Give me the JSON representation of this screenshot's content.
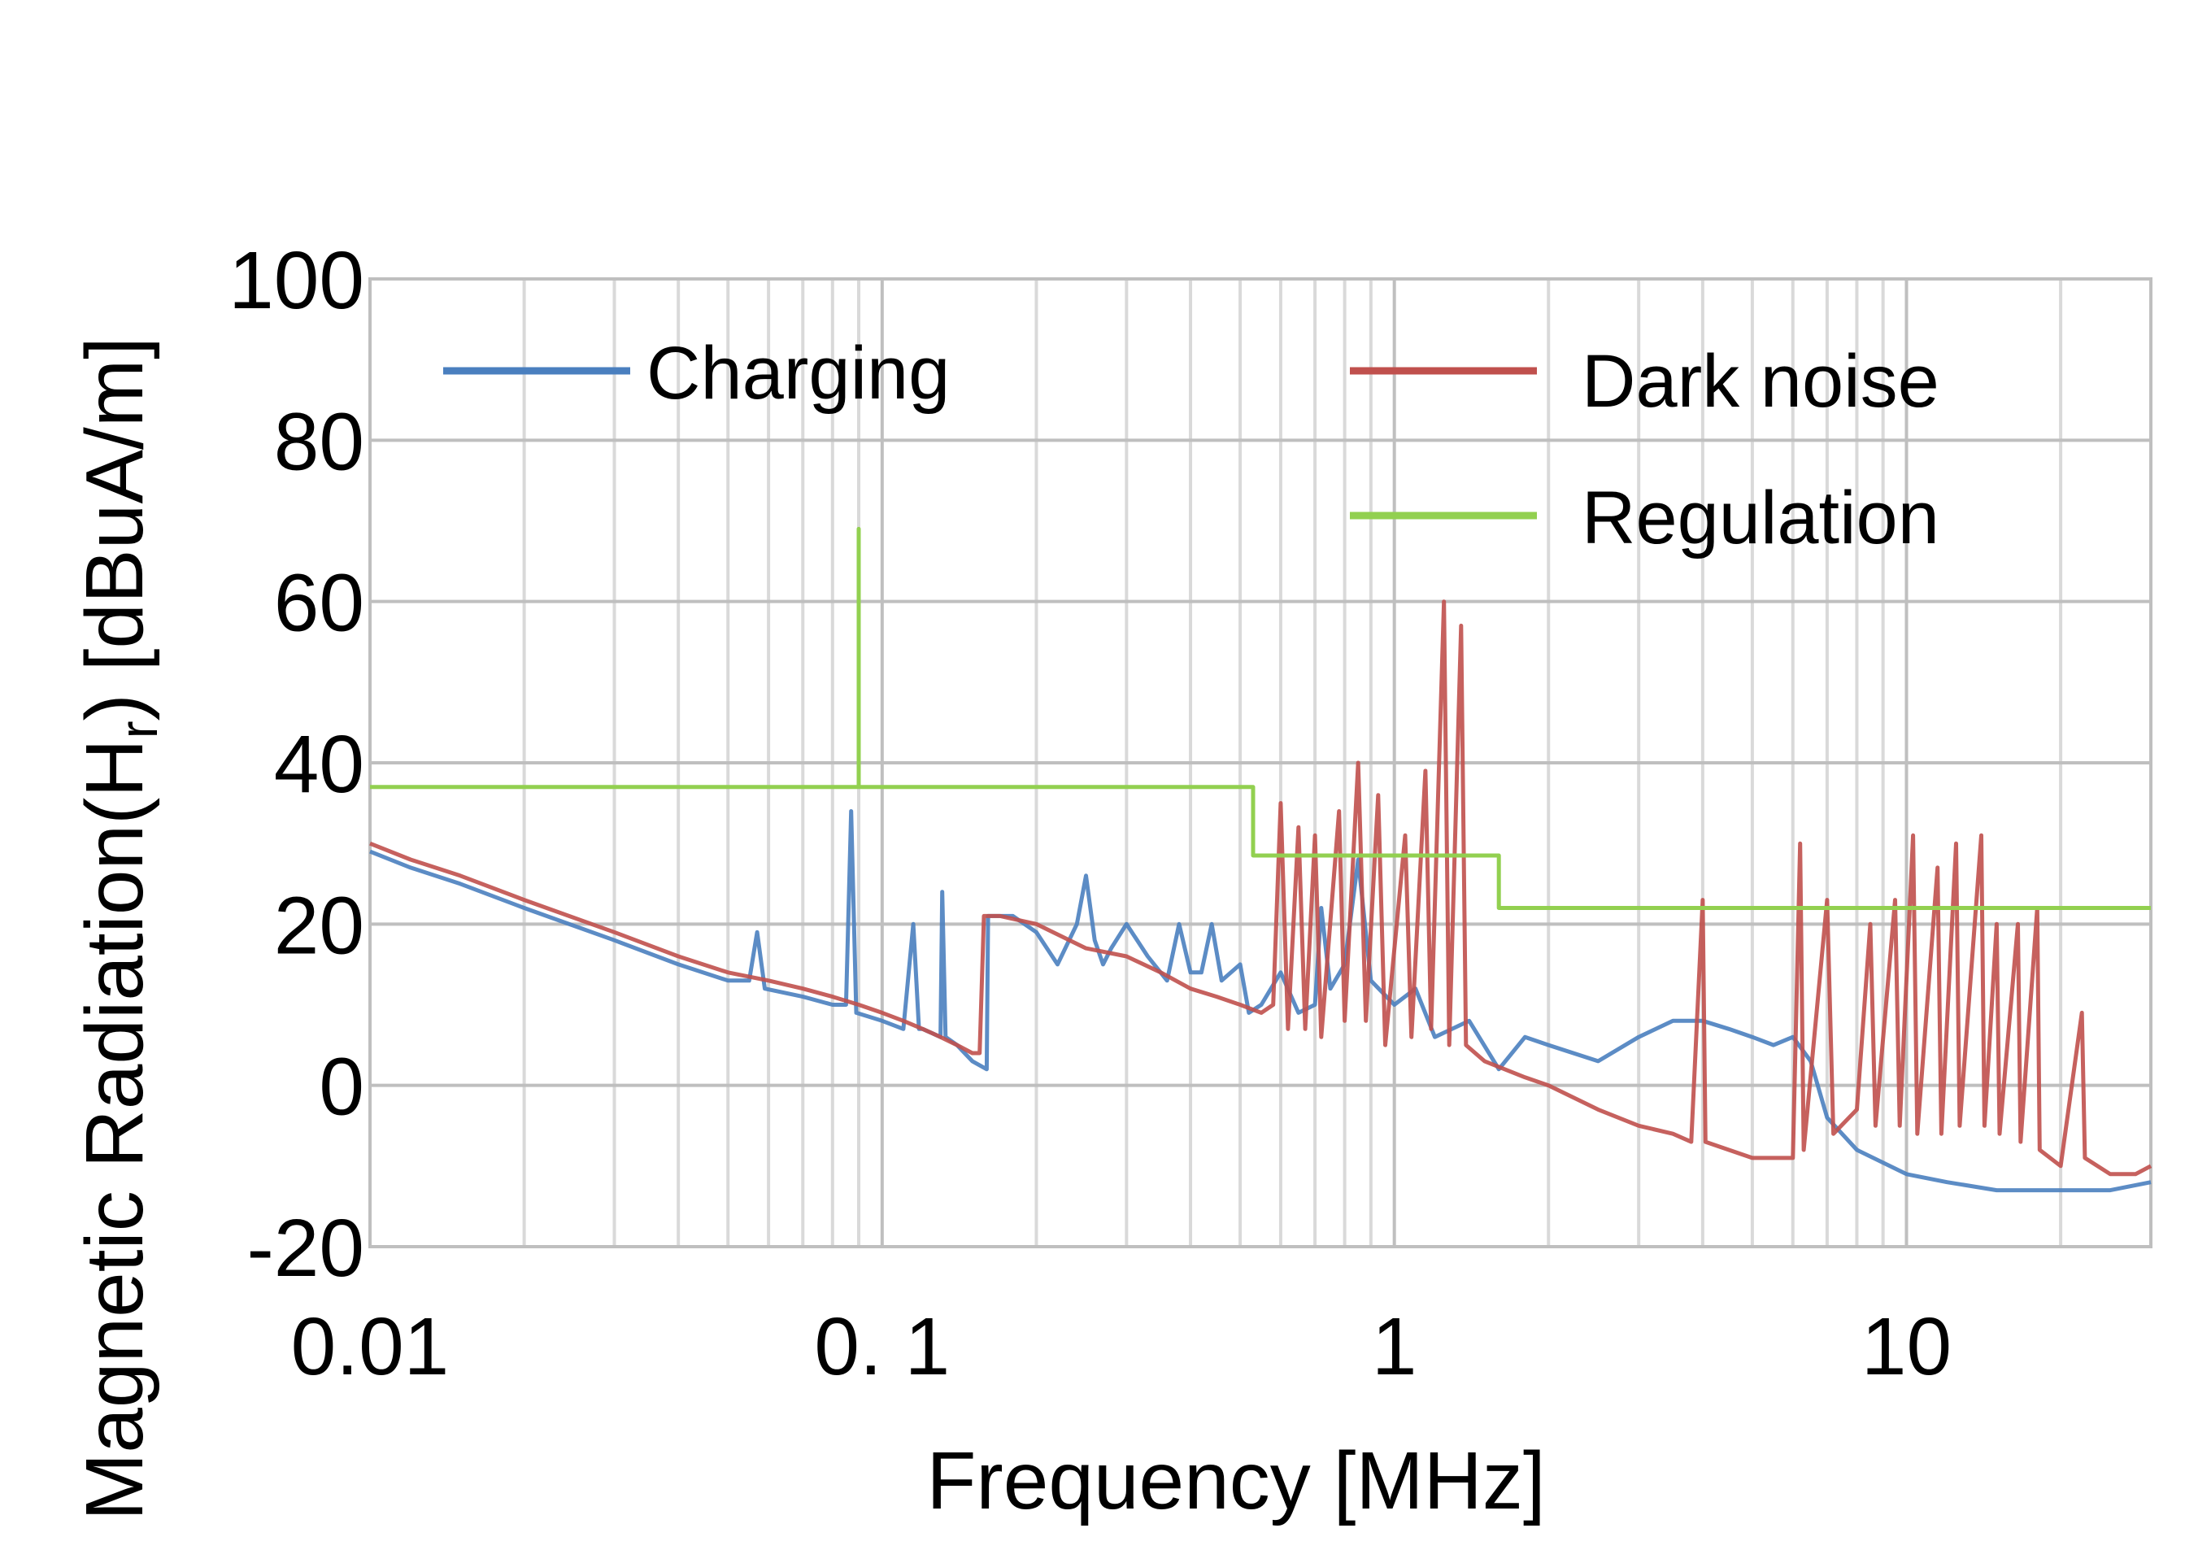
{
  "chart_data": {
    "type": "line",
    "xlabel": "Frequency [MHz]",
    "ylabel_main": "Magnetic Radiation(H",
    "ylabel_sub": "r",
    "ylabel_end": ") [dBuA/m]",
    "x_scale": "log",
    "xlim": [
      0.01,
      30
    ],
    "ylim": [
      -20,
      100
    ],
    "x_ticks": [
      {
        "value": 0.01,
        "label": "0.01"
      },
      {
        "value": 0.1,
        "label": "0. 1"
      },
      {
        "value": 1,
        "label": "1"
      },
      {
        "value": 10,
        "label": "10"
      }
    ],
    "y_ticks": [
      {
        "value": 100,
        "label": "100"
      },
      {
        "value": 80,
        "label": "80"
      },
      {
        "value": 60,
        "label": "60"
      },
      {
        "value": 40,
        "label": "40"
      },
      {
        "value": 20,
        "label": "20"
      },
      {
        "value": 0,
        "label": "0"
      },
      {
        "value": -20,
        "label": "-20"
      }
    ],
    "grid": true,
    "legend_placement": "top",
    "series": [
      {
        "name": "Charging",
        "color": "#4a7fbf",
        "points": [
          [
            0.01,
            29
          ],
          [
            0.012,
            27
          ],
          [
            0.015,
            25
          ],
          [
            0.02,
            22
          ],
          [
            0.03,
            18
          ],
          [
            0.04,
            15
          ],
          [
            0.05,
            13
          ],
          [
            0.055,
            13
          ],
          [
            0.057,
            19
          ],
          [
            0.059,
            12
          ],
          [
            0.07,
            11
          ],
          [
            0.08,
            10
          ],
          [
            0.085,
            10
          ],
          [
            0.087,
            34
          ],
          [
            0.089,
            9
          ],
          [
            0.1,
            8
          ],
          [
            0.11,
            7
          ],
          [
            0.115,
            20
          ],
          [
            0.118,
            7
          ],
          [
            0.12,
            7
          ],
          [
            0.13,
            6
          ],
          [
            0.131,
            24
          ],
          [
            0.133,
            6
          ],
          [
            0.14,
            5
          ],
          [
            0.15,
            3
          ],
          [
            0.16,
            2
          ],
          [
            0.161,
            21
          ],
          [
            0.18,
            21
          ],
          [
            0.2,
            19
          ],
          [
            0.22,
            15
          ],
          [
            0.24,
            20
          ],
          [
            0.25,
            26
          ],
          [
            0.26,
            18
          ],
          [
            0.27,
            15
          ],
          [
            0.28,
            17
          ],
          [
            0.3,
            20
          ],
          [
            0.33,
            16
          ],
          [
            0.36,
            13
          ],
          [
            0.38,
            20
          ],
          [
            0.4,
            14
          ],
          [
            0.42,
            14
          ],
          [
            0.44,
            20
          ],
          [
            0.46,
            13
          ],
          [
            0.5,
            15
          ],
          [
            0.52,
            9
          ],
          [
            0.55,
            10
          ],
          [
            0.6,
            14
          ],
          [
            0.65,
            9
          ],
          [
            0.7,
            10
          ],
          [
            0.72,
            22
          ],
          [
            0.75,
            12
          ],
          [
            0.8,
            15
          ],
          [
            0.85,
            28
          ],
          [
            0.9,
            13
          ],
          [
            1,
            10
          ],
          [
            1.1,
            12
          ],
          [
            1.2,
            6
          ],
          [
            1.4,
            8
          ],
          [
            1.6,
            2
          ],
          [
            1.8,
            6
          ],
          [
            2,
            5
          ],
          [
            2.5,
            3
          ],
          [
            3,
            6
          ],
          [
            3.5,
            8
          ],
          [
            4,
            8
          ],
          [
            4.5,
            7
          ],
          [
            5,
            6
          ],
          [
            5.5,
            5
          ],
          [
            6,
            6
          ],
          [
            6.5,
            3
          ],
          [
            7,
            -4
          ],
          [
            8,
            -8
          ],
          [
            10,
            -11
          ],
          [
            12,
            -12
          ],
          [
            15,
            -13
          ],
          [
            20,
            -13
          ],
          [
            25,
            -13
          ],
          [
            30,
            -12
          ]
        ]
      },
      {
        "name": "Dark noise",
        "color": "#c0504d",
        "points": [
          [
            0.01,
            30
          ],
          [
            0.012,
            28
          ],
          [
            0.015,
            26
          ],
          [
            0.02,
            23
          ],
          [
            0.03,
            19
          ],
          [
            0.04,
            16
          ],
          [
            0.05,
            14
          ],
          [
            0.06,
            13
          ],
          [
            0.07,
            12
          ],
          [
            0.08,
            11
          ],
          [
            0.09,
            10
          ],
          [
            0.1,
            9
          ],
          [
            0.11,
            8
          ],
          [
            0.12,
            7
          ],
          [
            0.13,
            6
          ],
          [
            0.14,
            5
          ],
          [
            0.15,
            4
          ],
          [
            0.155,
            4
          ],
          [
            0.158,
            21
          ],
          [
            0.17,
            21
          ],
          [
            0.2,
            20
          ],
          [
            0.25,
            17
          ],
          [
            0.3,
            16
          ],
          [
            0.35,
            14
          ],
          [
            0.4,
            12
          ],
          [
            0.45,
            11
          ],
          [
            0.5,
            10
          ],
          [
            0.55,
            9
          ],
          [
            0.58,
            10
          ],
          [
            0.6,
            35
          ],
          [
            0.62,
            7
          ],
          [
            0.65,
            32
          ],
          [
            0.67,
            7
          ],
          [
            0.7,
            31
          ],
          [
            0.72,
            6
          ],
          [
            0.78,
            34
          ],
          [
            0.8,
            8
          ],
          [
            0.85,
            40
          ],
          [
            0.88,
            8
          ],
          [
            0.93,
            36
          ],
          [
            0.96,
            5
          ],
          [
            1.05,
            31
          ],
          [
            1.08,
            6
          ],
          [
            1.15,
            39
          ],
          [
            1.18,
            7
          ],
          [
            1.25,
            60
          ],
          [
            1.28,
            5
          ],
          [
            1.35,
            57
          ],
          [
            1.38,
            5
          ],
          [
            1.5,
            3
          ],
          [
            1.8,
            1
          ],
          [
            2,
            0
          ],
          [
            2.5,
            -3
          ],
          [
            3,
            -5
          ],
          [
            3.5,
            -6
          ],
          [
            3.8,
            -7
          ],
          [
            4,
            23
          ],
          [
            4.05,
            -7
          ],
          [
            4.5,
            -8
          ],
          [
            5,
            -9
          ],
          [
            5.5,
            -9
          ],
          [
            6,
            -9
          ],
          [
            6.2,
            30
          ],
          [
            6.3,
            -8
          ],
          [
            7,
            23
          ],
          [
            7.2,
            -6
          ],
          [
            8,
            -3
          ],
          [
            8.5,
            20
          ],
          [
            8.7,
            -5
          ],
          [
            9.5,
            23
          ],
          [
            9.7,
            -5
          ],
          [
            10.3,
            31
          ],
          [
            10.5,
            -6
          ],
          [
            11.5,
            27
          ],
          [
            11.7,
            -6
          ],
          [
            12.5,
            30
          ],
          [
            12.7,
            -5
          ],
          [
            14,
            31
          ],
          [
            14.2,
            -5
          ],
          [
            15,
            20
          ],
          [
            15.2,
            -6
          ],
          [
            16.5,
            20
          ],
          [
            16.7,
            -7
          ],
          [
            18,
            22
          ],
          [
            18.2,
            -8
          ],
          [
            20,
            -10
          ],
          [
            22,
            9
          ],
          [
            22.3,
            -9
          ],
          [
            25,
            -11
          ],
          [
            28,
            -11
          ],
          [
            30,
            -10
          ]
        ]
      },
      {
        "name": "Regulation",
        "color": "#92d050",
        "points": [
          [
            0.01,
            37
          ],
          [
            0.09,
            37
          ],
          [
            0.09,
            69
          ],
          [
            0.09,
            37
          ],
          [
            0.53,
            37
          ],
          [
            0.53,
            28.5
          ],
          [
            1.6,
            28.5
          ],
          [
            1.6,
            22
          ],
          [
            30,
            22
          ]
        ]
      }
    ]
  }
}
